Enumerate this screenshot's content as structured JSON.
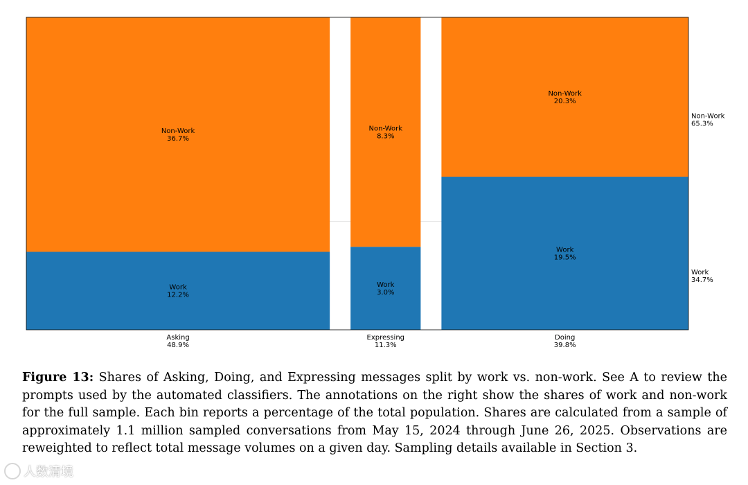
{
  "chart_data": {
    "type": "mosaic",
    "categories": [
      {
        "name": "Asking",
        "share": "48.9%",
        "value": 48.9
      },
      {
        "name": "Expressing",
        "share": "11.3%",
        "value": 11.3
      },
      {
        "name": "Doing",
        "share": "39.8%",
        "value": 39.8
      }
    ],
    "series": [
      {
        "name": "Work",
        "values": [
          12.2,
          3.0,
          19.5
        ],
        "labels": [
          "12.2%",
          "3.0%",
          "19.5%"
        ]
      },
      {
        "name": "Non-Work",
        "values": [
          36.7,
          8.3,
          20.3
        ],
        "labels": [
          "36.7%",
          "8.3%",
          "20.3%"
        ]
      }
    ],
    "totals": [
      {
        "name": "Work",
        "share": "34.7%",
        "value": 34.7
      },
      {
        "name": "Non-Work",
        "share": "65.3%",
        "value": 65.3
      }
    ],
    "colors": {
      "Work": "#1f77b4",
      "Non-Work": "#ff7f0e"
    }
  },
  "caption": {
    "label": "Figure 13:",
    "text": "Shares of Asking, Doing, and Expressing messages split by work vs. non-work. See A to review the prompts used by the automated classifiers. The annotations on the right show the shares of work and non-work for the full sample. Each bin reports a percentage of the total population. Shares are calculated from a sample of approximately 1.1 million sampled conversations from May 15, 2024 through June 26, 2025. Observations are reweighted to reflect total message volumes on a given day. Sampling details available in Section 3."
  },
  "watermark": {
    "text": "人数清境"
  }
}
